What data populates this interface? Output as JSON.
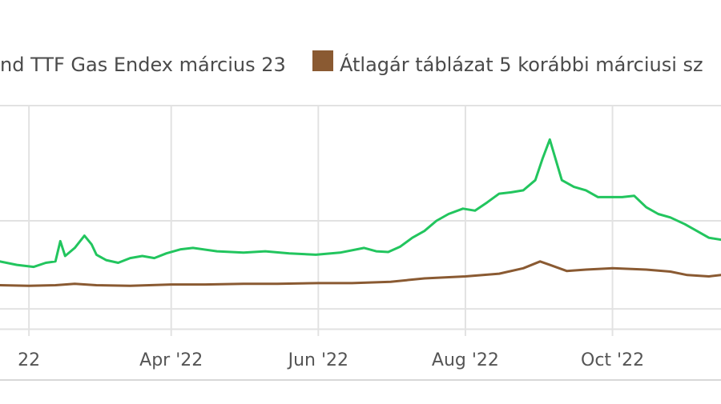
{
  "legend": [
    {
      "label": "nd TTF Gas Endex március 23",
      "color": "#22c55e"
    },
    {
      "label": "Átlagár táblázat 5 korábbi márciusi sz",
      "color": "#8a5a32"
    }
  ],
  "chart_data": {
    "type": "line",
    "x_tick_labels": [
      "22",
      "Apr '22",
      "Jun '22",
      "Aug '22",
      "Oct '22"
    ],
    "x_tick_positions": [
      "2022-02-01",
      "2022-04-01",
      "2022-06-01",
      "2022-08-01",
      "2022-10-01"
    ],
    "xlim": [
      "2022-01-20",
      "2022-11-15"
    ],
    "ylim": [
      0,
      340
    ],
    "y_gridlines": [
      10,
      40,
      170,
      340
    ],
    "grid": true,
    "legend_position": "top",
    "series": [
      {
        "name": "nd TTF Gas Endex március 23",
        "color": "#22c55e",
        "x": [
          "2022-01-20",
          "2022-01-27",
          "2022-02-03",
          "2022-02-08",
          "2022-02-12",
          "2022-02-14",
          "2022-02-16",
          "2022-02-20",
          "2022-02-24",
          "2022-02-27",
          "2022-03-01",
          "2022-03-05",
          "2022-03-10",
          "2022-03-15",
          "2022-03-20",
          "2022-03-25",
          "2022-03-30",
          "2022-04-05",
          "2022-04-10",
          "2022-04-20",
          "2022-05-01",
          "2022-05-10",
          "2022-05-20",
          "2022-05-31",
          "2022-06-10",
          "2022-06-20",
          "2022-06-25",
          "2022-06-30",
          "2022-07-05",
          "2022-07-10",
          "2022-07-15",
          "2022-07-20",
          "2022-07-25",
          "2022-07-31",
          "2022-08-05",
          "2022-08-10",
          "2022-08-15",
          "2022-08-20",
          "2022-08-25",
          "2022-08-30",
          "2022-09-02",
          "2022-09-05",
          "2022-09-10",
          "2022-09-15",
          "2022-09-20",
          "2022-09-25",
          "2022-09-30",
          "2022-10-05",
          "2022-10-10",
          "2022-10-15",
          "2022-10-20",
          "2022-10-25",
          "2022-10-31",
          "2022-11-05",
          "2022-11-10",
          "2022-11-15"
        ],
        "y": [
          110,
          105,
          102,
          108,
          110,
          140,
          118,
          130,
          148,
          135,
          120,
          112,
          108,
          115,
          118,
          115,
          122,
          128,
          130,
          125,
          123,
          125,
          122,
          120,
          123,
          130,
          125,
          124,
          132,
          145,
          155,
          170,
          180,
          188,
          185,
          197,
          210,
          212,
          215,
          230,
          262,
          290,
          230,
          220,
          215,
          205,
          205,
          205,
          207,
          190,
          180,
          175,
          165,
          155,
          145,
          142
        ]
      },
      {
        "name": "Átlagár táblázat 5 korábbi márciusi sz",
        "color": "#8a5a32",
        "x": [
          "2022-01-20",
          "2022-02-01",
          "2022-02-12",
          "2022-02-20",
          "2022-03-01",
          "2022-03-15",
          "2022-04-01",
          "2022-04-15",
          "2022-05-01",
          "2022-05-15",
          "2022-06-01",
          "2022-06-15",
          "2022-07-01",
          "2022-07-15",
          "2022-08-01",
          "2022-08-15",
          "2022-08-25",
          "2022-09-01",
          "2022-09-05",
          "2022-09-12",
          "2022-09-20",
          "2022-10-01",
          "2022-10-15",
          "2022-10-25",
          "2022-11-01",
          "2022-11-10",
          "2022-11-15"
        ],
        "y": [
          75,
          74,
          75,
          77,
          75,
          74,
          76,
          76,
          77,
          77,
          78,
          78,
          80,
          85,
          88,
          92,
          100,
          110,
          105,
          96,
          98,
          100,
          98,
          95,
          90,
          88,
          90
        ]
      }
    ]
  }
}
